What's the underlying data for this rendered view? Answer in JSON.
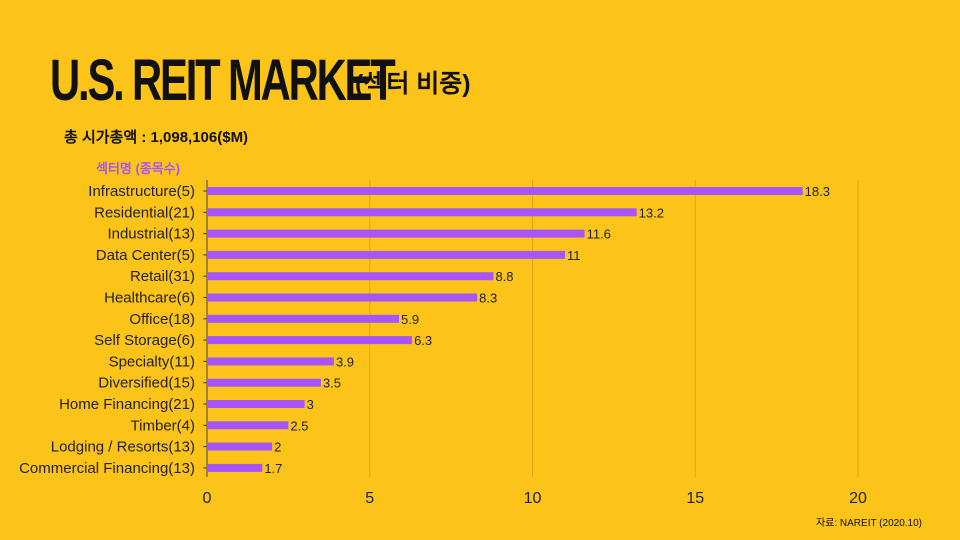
{
  "header": {
    "title": "U.S. REIT MARKET",
    "subtitle": "(섹터 비중)",
    "total": "총 시가총액 : 1,098,106($M)",
    "category_header": "섹터명 (종목수)"
  },
  "footer": {
    "source": "자료: NAREIT (2020.10)"
  },
  "colors": {
    "background": "#FCC419",
    "bar": "#A855F7",
    "grid": "#E0A810"
  },
  "chart_data": {
    "type": "bar",
    "orientation": "horizontal",
    "categories": [
      "Infrastructure(5)",
      "Residential(21)",
      "Industrial(13)",
      "Data Center(5)",
      "Retail(31)",
      "Healthcare(6)",
      "Office(18)",
      "Self Storage(6)",
      "Specialty(11)",
      "Diversified(15)",
      "Home Financing(21)",
      "Timber(4)",
      "Lodging / Resorts(13)",
      "Commercial Financing(13)"
    ],
    "values": [
      18.3,
      13.2,
      11.6,
      11,
      8.8,
      8.3,
      5.9,
      6.3,
      3.9,
      3.5,
      3,
      2.5,
      2,
      1.7
    ],
    "value_labels": [
      "18.3",
      "13.2",
      "11.6",
      "11",
      "8.8",
      "8.3",
      "5.9",
      "6.3",
      "3.9",
      "3.5",
      "3",
      "2.5",
      "2",
      "1.7"
    ],
    "xlim": [
      0,
      22
    ],
    "xticks": [
      0,
      5,
      10,
      15,
      20
    ],
    "grid": "vertical",
    "xlabel": "",
    "ylabel": "섹터명 (종목수)"
  }
}
